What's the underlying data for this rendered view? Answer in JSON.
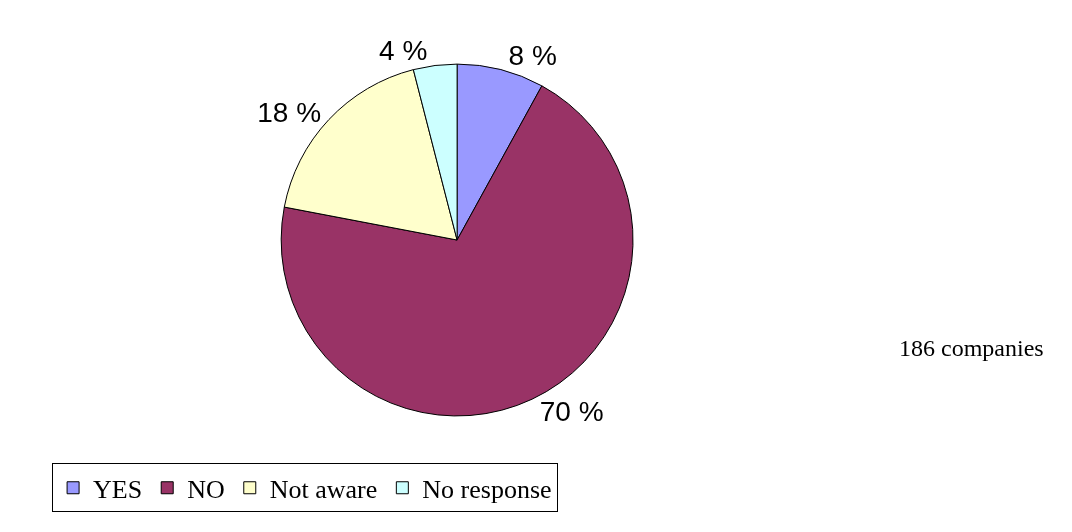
{
  "chart_data": {
    "type": "pie",
    "categories": [
      "YES",
      "NO",
      "Not aware",
      "No response"
    ],
    "values": [
      8,
      70,
      18,
      4
    ],
    "value_labels": [
      "8 %",
      "70 %",
      "18 %",
      "4 %"
    ],
    "colors": [
      "#9999ff",
      "#993366",
      "#ffffcc",
      "#ccffff"
    ],
    "legend": "bottom",
    "annotations": [
      "186 companies"
    ]
  }
}
